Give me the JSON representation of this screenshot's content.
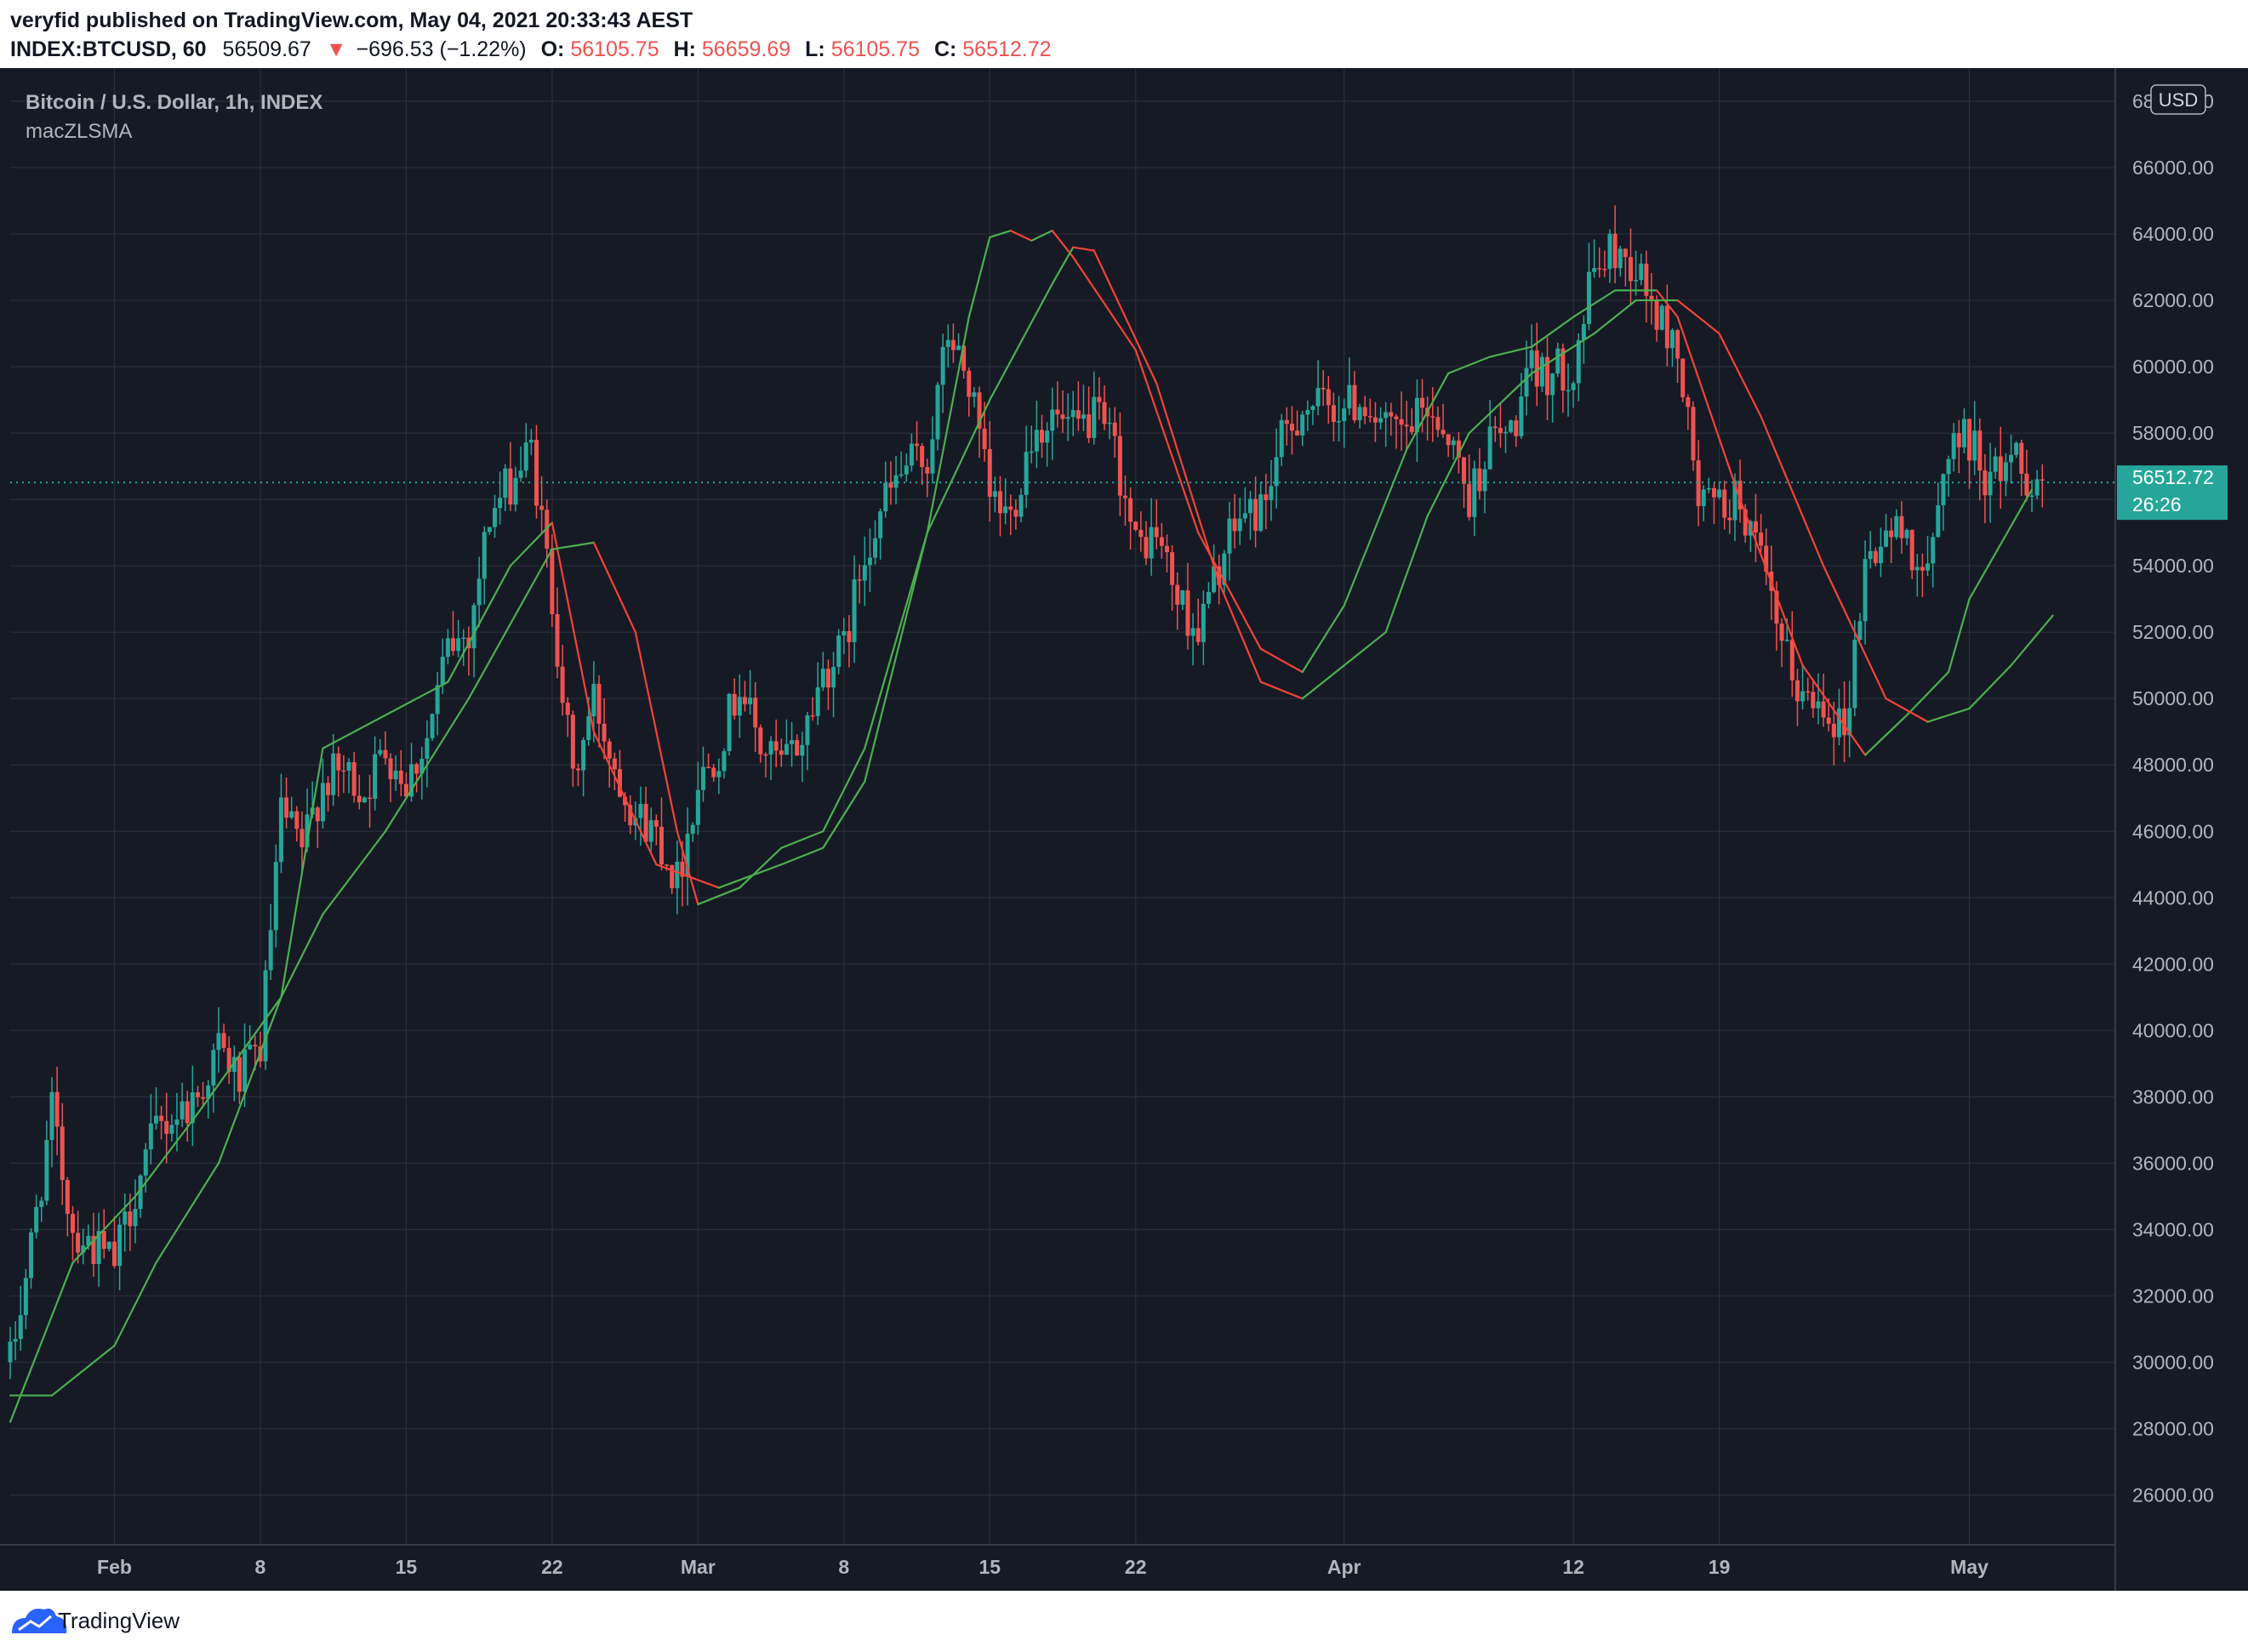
{
  "header": {
    "publisher_line": "veryfid published on TradingView.com, May 04, 2021 20:33:43 AEST",
    "symbol": "INDEX:BTCUSD, 60",
    "last": "56509.67",
    "change_arrow": "▼",
    "change": "−696.53 (−1.22%)",
    "o_label": "O:",
    "o_value": "56105.75",
    "h_label": "H:",
    "h_value": "56659.69",
    "l_label": "L:",
    "l_value": "56105.75",
    "c_label": "C:",
    "c_value": "56512.72"
  },
  "legend": {
    "title": "Bitcoin / U.S. Dollar, 1h, INDEX",
    "indicator": "macZLSMA"
  },
  "price_axis": {
    "currency": "USD"
  },
  "last_price_tag": {
    "price": "56512.72",
    "countdown": "26:26"
  },
  "footer": {
    "brand": "TradingView"
  },
  "colors": {
    "background": "#161a25",
    "grid": "#2a2e39",
    "axis_text": "#b2b5be",
    "up": "#26a69a",
    "down": "#ef5350",
    "zlsma_green": "#4caf50",
    "zlsma_red": "#f44336",
    "price_tag": "#26a69a",
    "logo": "#2962ff"
  },
  "chart_data": {
    "type": "candlestick",
    "title": "Bitcoin / U.S. Dollar, 1h, INDEX",
    "interval": "1h",
    "ylim": [
      24500,
      69000
    ],
    "yticks": [
      26000,
      28000,
      30000,
      32000,
      34000,
      36000,
      38000,
      40000,
      42000,
      44000,
      46000,
      48000,
      50000,
      52000,
      54000,
      56000,
      58000,
      60000,
      62000,
      64000,
      66000,
      68000
    ],
    "xticks": [
      {
        "label": "Feb",
        "date": "2021-02-01"
      },
      {
        "label": "8",
        "date": "2021-02-08"
      },
      {
        "label": "15",
        "date": "2021-02-15"
      },
      {
        "label": "22",
        "date": "2021-02-22"
      },
      {
        "label": "Mar",
        "date": "2021-03-01"
      },
      {
        "label": "8",
        "date": "2021-03-08"
      },
      {
        "label": "15",
        "date": "2021-03-15"
      },
      {
        "label": "22",
        "date": "2021-03-22"
      },
      {
        "label": "Apr",
        "date": "2021-04-01"
      },
      {
        "label": "12",
        "date": "2021-04-12"
      },
      {
        "label": "19",
        "date": "2021-04-19"
      },
      {
        "label": "May",
        "date": "2021-05-01"
      }
    ],
    "xrange": [
      "2021-01-27",
      "2021-05-08"
    ],
    "price_path": [
      [
        "2021-01-27",
        30000
      ],
      [
        "2021-01-28",
        33500
      ],
      [
        "2021-01-29",
        37500
      ],
      [
        "2021-01-30",
        34000
      ],
      [
        "2021-01-31",
        33500
      ],
      [
        "2021-02-01",
        33000
      ],
      [
        "2021-02-02",
        35200
      ],
      [
        "2021-02-03",
        37000
      ],
      [
        "2021-02-04",
        37500
      ],
      [
        "2021-02-05",
        38000
      ],
      [
        "2021-02-06",
        39500
      ],
      [
        "2021-02-07",
        38500
      ],
      [
        "2021-02-08",
        39500
      ],
      [
        "2021-02-09",
        46500
      ],
      [
        "2021-02-10",
        45500
      ],
      [
        "2021-02-11",
        47500
      ],
      [
        "2021-02-12",
        47800
      ],
      [
        "2021-02-13",
        47200
      ],
      [
        "2021-02-14",
        48500
      ],
      [
        "2021-02-15",
        47500
      ],
      [
        "2021-02-16",
        48800
      ],
      [
        "2021-02-17",
        51500
      ],
      [
        "2021-02-18",
        52000
      ],
      [
        "2021-02-19",
        55500
      ],
      [
        "2021-02-20",
        56500
      ],
      [
        "2021-02-21",
        57500
      ],
      [
        "2021-02-22",
        53000
      ],
      [
        "2021-02-23",
        47500
      ],
      [
        "2021-02-24",
        50000
      ],
      [
        "2021-02-25",
        48000
      ],
      [
        "2021-02-26",
        46500
      ],
      [
        "2021-02-27",
        46000
      ],
      [
        "2021-02-28",
        44500
      ],
      [
        "2021-03-01",
        47500
      ],
      [
        "2021-03-02",
        48500
      ],
      [
        "2021-03-03",
        50500
      ],
      [
        "2021-03-04",
        48500
      ],
      [
        "2021-03-05",
        48000
      ],
      [
        "2021-03-06",
        48800
      ],
      [
        "2021-03-07",
        50800
      ],
      [
        "2021-03-08",
        51500
      ],
      [
        "2021-03-09",
        54500
      ],
      [
        "2021-03-10",
        56000
      ],
      [
        "2021-03-11",
        57000
      ],
      [
        "2021-03-12",
        57200
      ],
      [
        "2021-03-13",
        61000
      ],
      [
        "2021-03-14",
        59500
      ],
      [
        "2021-03-15",
        56000
      ],
      [
        "2021-03-16",
        55500
      ],
      [
        "2021-03-17",
        58000
      ],
      [
        "2021-03-18",
        58500
      ],
      [
        "2021-03-19",
        58000
      ],
      [
        "2021-03-20",
        58500
      ],
      [
        "2021-03-21",
        57500
      ],
      [
        "2021-03-22",
        54500
      ],
      [
        "2021-03-23",
        55000
      ],
      [
        "2021-03-24",
        53000
      ],
      [
        "2021-03-25",
        52000
      ],
      [
        "2021-03-26",
        54000
      ],
      [
        "2021-03-27",
        55500
      ],
      [
        "2021-03-28",
        55700
      ],
      [
        "2021-03-29",
        57700
      ],
      [
        "2021-03-30",
        58800
      ],
      [
        "2021-03-31",
        58800
      ],
      [
        "2021-04-01",
        58800
      ],
      [
        "2021-04-02",
        59000
      ],
      [
        "2021-04-03",
        58000
      ],
      [
        "2021-04-04",
        58000
      ],
      [
        "2021-04-05",
        58800
      ],
      [
        "2021-04-06",
        58000
      ],
      [
        "2021-04-07",
        56000
      ],
      [
        "2021-04-08",
        57800
      ],
      [
        "2021-04-09",
        58000
      ],
      [
        "2021-04-10",
        59800
      ],
      [
        "2021-04-11",
        59800
      ],
      [
        "2021-04-12",
        60000
      ],
      [
        "2021-04-13",
        63000
      ],
      [
        "2021-04-14",
        63500
      ],
      [
        "2021-04-15",
        63000
      ],
      [
        "2021-04-16",
        61500
      ],
      [
        "2021-04-17",
        60500
      ],
      [
        "2021-04-18",
        56000
      ],
      [
        "2021-04-19",
        55800
      ],
      [
        "2021-04-20",
        56000
      ],
      [
        "2021-04-21",
        54000
      ],
      [
        "2021-04-22",
        51500
      ],
      [
        "2021-04-23",
        50000
      ],
      [
        "2021-04-24",
        50000
      ],
      [
        "2021-04-25",
        49000
      ],
      [
        "2021-04-26",
        54000
      ],
      [
        "2021-04-27",
        55000
      ],
      [
        "2021-04-28",
        54900
      ],
      [
        "2021-04-29",
        53500
      ],
      [
        "2021-04-30",
        57800
      ],
      [
        "2021-05-01",
        57800
      ],
      [
        "2021-05-02",
        56500
      ],
      [
        "2021-05-03",
        57500
      ],
      [
        "2021-05-04",
        56500
      ]
    ],
    "zlsma_fast": [
      [
        "2021-01-27",
        28200
      ],
      [
        "2021-01-30",
        33000
      ],
      [
        "2021-02-02",
        35000
      ],
      [
        "2021-02-05",
        37500
      ],
      [
        "2021-02-09",
        41000
      ],
      [
        "2021-02-11",
        48500
      ],
      [
        "2021-02-17",
        50500
      ],
      [
        "2021-02-20",
        54000
      ],
      [
        "2021-02-22",
        55300
      ],
      [
        "2021-02-24",
        49000
      ],
      [
        "2021-02-27",
        45000
      ],
      [
        "2021-03-02",
        44300
      ],
      [
        "2021-03-05",
        45000
      ],
      [
        "2021-03-07",
        45500
      ],
      [
        "2021-03-09",
        47500
      ],
      [
        "2021-03-12",
        55000
      ],
      [
        "2021-03-14",
        61500
      ],
      [
        "2021-03-15",
        63900
      ],
      [
        "2021-03-16",
        64100
      ],
      [
        "2021-03-17",
        63800
      ],
      [
        "2021-03-18",
        64100
      ],
      [
        "2021-03-19",
        63300
      ],
      [
        "2021-03-22",
        60500
      ],
      [
        "2021-03-25",
        55000
      ],
      [
        "2021-03-28",
        51500
      ],
      [
        "2021-03-30",
        50800
      ],
      [
        "2021-04-01",
        52800
      ],
      [
        "2021-04-04",
        57500
      ],
      [
        "2021-04-06",
        59800
      ],
      [
        "2021-04-08",
        60300
      ],
      [
        "2021-04-10",
        60600
      ],
      [
        "2021-04-12",
        61500
      ],
      [
        "2021-04-14",
        62300
      ],
      [
        "2021-04-16",
        62300
      ],
      [
        "2021-04-17",
        61500
      ],
      [
        "2021-04-20",
        56000
      ],
      [
        "2021-04-23",
        51000
      ],
      [
        "2021-04-26",
        48300
      ],
      [
        "2021-04-28",
        49500
      ],
      [
        "2021-04-30",
        50800
      ],
      [
        "2021-05-01",
        53000
      ],
      [
        "2021-05-04",
        56300
      ]
    ],
    "zlsma_slow": [
      [
        "2021-01-27",
        29000
      ],
      [
        "2021-01-29",
        29000
      ],
      [
        "2021-02-01",
        30500
      ],
      [
        "2021-02-03",
        33000
      ],
      [
        "2021-02-06",
        36000
      ],
      [
        "2021-02-09",
        41000
      ],
      [
        "2021-02-11",
        43500
      ],
      [
        "2021-02-14",
        46000
      ],
      [
        "2021-02-18",
        50000
      ],
      [
        "2021-02-22",
        54500
      ],
      [
        "2021-02-24",
        54700
      ],
      [
        "2021-02-26",
        52000
      ],
      [
        "2021-02-28",
        46000
      ],
      [
        "2021-03-01",
        43800
      ],
      [
        "2021-03-03",
        44300
      ],
      [
        "2021-03-05",
        45500
      ],
      [
        "2021-03-07",
        46000
      ],
      [
        "2021-03-09",
        48500
      ],
      [
        "2021-03-12",
        55000
      ],
      [
        "2021-03-15",
        59000
      ],
      [
        "2021-03-18",
        62500
      ],
      [
        "2021-03-19",
        63600
      ],
      [
        "2021-03-20",
        63500
      ],
      [
        "2021-03-23",
        59500
      ],
      [
        "2021-03-26",
        53500
      ],
      [
        "2021-03-28",
        50500
      ],
      [
        "2021-03-30",
        50000
      ],
      [
        "2021-04-01",
        51000
      ],
      [
        "2021-04-03",
        52000
      ],
      [
        "2021-04-05",
        55500
      ],
      [
        "2021-04-07",
        58000
      ],
      [
        "2021-04-10",
        59800
      ],
      [
        "2021-04-13",
        61000
      ],
      [
        "2021-04-15",
        62000
      ],
      [
        "2021-04-17",
        62000
      ],
      [
        "2021-04-19",
        61000
      ],
      [
        "2021-04-21",
        58500
      ],
      [
        "2021-04-24",
        54000
      ],
      [
        "2021-04-27",
        50000
      ],
      [
        "2021-04-29",
        49300
      ],
      [
        "2021-05-01",
        49700
      ],
      [
        "2021-05-03",
        51000
      ],
      [
        "2021-05-05",
        52500
      ]
    ],
    "current_price": 56512.72
  }
}
